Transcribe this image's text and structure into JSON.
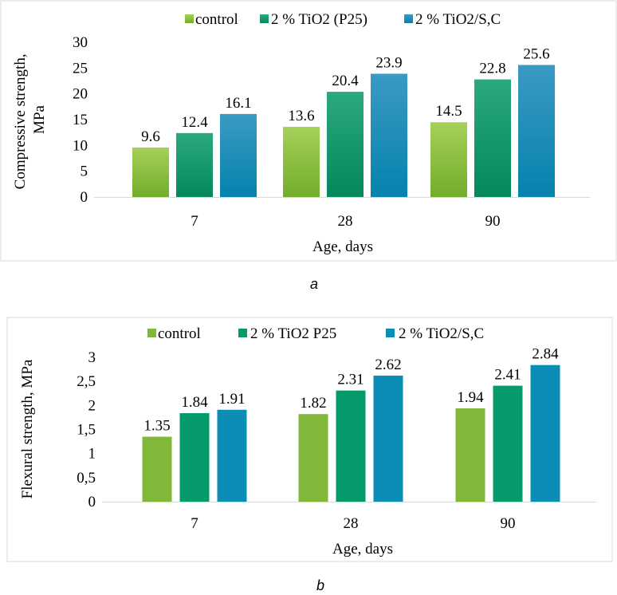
{
  "chart_data": [
    {
      "type": "bar",
      "panel_label": "a",
      "categories": [
        "7",
        "28",
        "90"
      ],
      "series": [
        {
          "name": "control",
          "values": [
            9.6,
            13.6,
            14.5
          ],
          "color_top": "#a6d05a",
          "color_bottom": "#72ad2a"
        },
        {
          "name": "2 % TiO2 (P25)",
          "values": [
            12.4,
            20.4,
            22.8
          ],
          "color_top": "#2aaa7c",
          "color_bottom": "#05875d"
        },
        {
          "name": "2 % TiO2/S,C",
          "values": [
            16.1,
            23.9,
            25.6
          ],
          "color_top": "#3a9ac4",
          "color_bottom": "#0582ad"
        }
      ],
      "data_labels": [
        [
          "9.6",
          "13.6",
          "14.5"
        ],
        [
          "12.4",
          "20.4",
          "22.8"
        ],
        [
          "16.1",
          "23.9",
          "25.6"
        ]
      ],
      "yticks": [
        "0",
        "5",
        "10",
        "15",
        "20",
        "25",
        "30"
      ],
      "ylim": [
        0,
        30
      ],
      "ystep": 5,
      "xlabel": "Age, days",
      "ylabel": "Compressive strength, MPa",
      "ylabel_lines": [
        "Compressive strength,",
        "MPa"
      ],
      "legend_position": "top",
      "grid": false
    },
    {
      "type": "bar",
      "panel_label": "b",
      "categories": [
        "7",
        "28",
        "90"
      ],
      "series": [
        {
          "name": "control",
          "values": [
            1.35,
            1.82,
            1.94
          ],
          "color_top": "#82b83a",
          "color_bottom": "#82b83a"
        },
        {
          "name": "2 % TiO2 P25",
          "values": [
            1.84,
            2.31,
            2.41
          ],
          "color_top": "#049a6c",
          "color_bottom": "#049a6c"
        },
        {
          "name": "2 % TiO2/S,C",
          "values": [
            1.91,
            2.62,
            2.84
          ],
          "color_top": "#0b8db5",
          "color_bottom": "#0b8db5"
        }
      ],
      "data_labels": [
        [
          "1.35",
          "1.82",
          "1.94"
        ],
        [
          "1.84",
          "2.31",
          "2.41"
        ],
        [
          "1.91",
          "2.62",
          "2.84"
        ]
      ],
      "yticks": [
        "0",
        "0,5",
        "1",
        "1,5",
        "2",
        "2,5",
        "3"
      ],
      "ylim": [
        0,
        3
      ],
      "ystep": 0.5,
      "xlabel": "Age, days",
      "ylabel": "Flexural strength, MPa",
      "legend_position": "top",
      "grid": false
    }
  ]
}
